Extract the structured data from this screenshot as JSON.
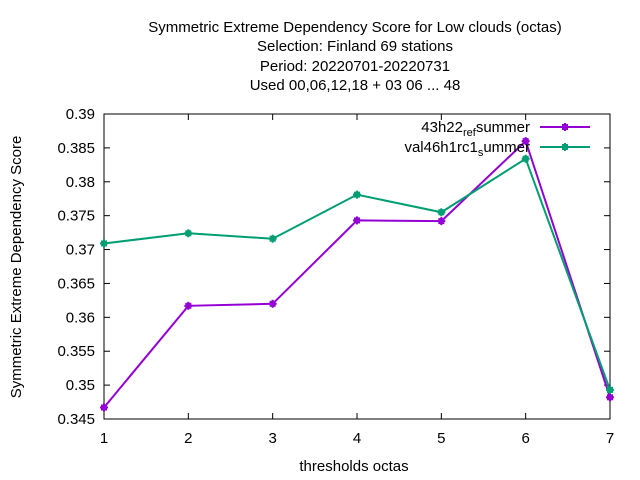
{
  "chart_data": {
    "type": "line",
    "title_lines": [
      "Symmetric Extreme Dependency Score  for Low clouds (octas)",
      "Selection: Finland     69 stations",
      "Period: 20220701-20220731",
      "Used  00,06,12,18  + 03 06 ... 48"
    ],
    "xlabel": "thresholds octas",
    "ylabel": "Symmetric Extreme Dependency Score",
    "x": [
      1,
      2,
      3,
      4,
      5,
      6,
      7
    ],
    "xlim": [
      1,
      7
    ],
    "ylim": [
      0.345,
      0.39
    ],
    "x_ticks": [
      "1",
      "2",
      "3",
      "4",
      "5",
      "6",
      "7"
    ],
    "y_ticks": [
      "0.345",
      "0.35",
      "0.355",
      "0.36",
      "0.365",
      "0.37",
      "0.375",
      "0.38",
      "0.385",
      "0.39"
    ],
    "legend_position": "top-right",
    "series": [
      {
        "name": "43h22_ref_summer",
        "label_parts": [
          "43h22",
          "ref",
          "s",
          "ummer"
        ],
        "color": "#9400d3",
        "values": [
          0.3467,
          0.3617,
          0.362,
          0.3743,
          0.3742,
          0.386,
          0.3482
        ]
      },
      {
        "name": "val46h1rc1_summer",
        "label_parts": [
          "val46h1rc1",
          "s",
          "ummer"
        ],
        "color": "#009e73",
        "values": [
          0.3709,
          0.3724,
          0.3716,
          0.3781,
          0.3755,
          0.3834,
          0.3493
        ]
      }
    ]
  }
}
